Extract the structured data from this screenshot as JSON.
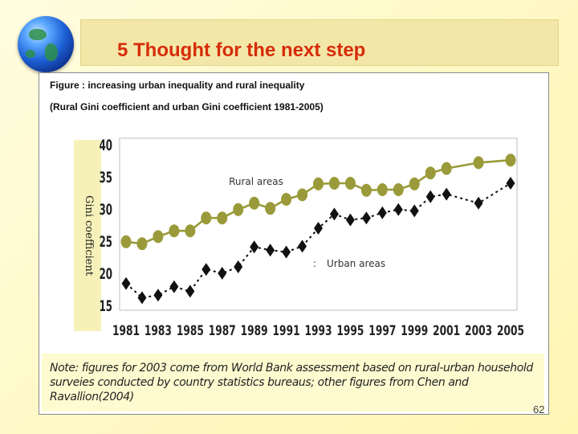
{
  "slide": {
    "title": "5 Thought for the next step",
    "caption_line1": "Figure : increasing urban inequality and rural inequality",
    "caption_line2": "(Rural Gini coefficient and urban Gini coefficient 1981-2005)",
    "note": "Note: figures for 2003 come from World Bank assessment based on rural-urban household surveies conducted by country statistics bureaus; other figures from Chen and Ravallion(2004)",
    "page_number": "62"
  },
  "chart_data": {
    "type": "line",
    "title": "",
    "xlabel": "",
    "ylabel": "Gini coefficient",
    "x_tick_labels": [
      "1981",
      "1983",
      "1985",
      "1987",
      "1989",
      "1991",
      "1993",
      "1995",
      "1997",
      "1999",
      "2001",
      "2003",
      "2005"
    ],
    "y_ticks": [
      15,
      20,
      25,
      30,
      35,
      40
    ],
    "ylim": [
      15,
      40
    ],
    "xlim": [
      1981,
      2005
    ],
    "grid": false,
    "series": [
      {
        "name": "Rural areas",
        "color": "#9a9a3a",
        "marker": "circle",
        "line_style": "solid",
        "points": [
          {
            "x": 1981,
            "y": 24.9
          },
          {
            "x": 1982,
            "y": 24.6
          },
          {
            "x": 1983,
            "y": 25.7
          },
          {
            "x": 1984,
            "y": 26.6
          },
          {
            "x": 1985,
            "y": 26.6
          },
          {
            "x": 1986,
            "y": 28.6
          },
          {
            "x": 1987,
            "y": 28.6
          },
          {
            "x": 1988,
            "y": 29.9
          },
          {
            "x": 1989,
            "y": 30.9
          },
          {
            "x": 1990,
            "y": 30.1
          },
          {
            "x": 1991,
            "y": 31.5
          },
          {
            "x": 1992,
            "y": 32.2
          },
          {
            "x": 1993,
            "y": 33.9
          },
          {
            "x": 1994,
            "y": 34.0
          },
          {
            "x": 1995,
            "y": 34.0
          },
          {
            "x": 1996,
            "y": 32.9
          },
          {
            "x": 1997,
            "y": 33.0
          },
          {
            "x": 1998,
            "y": 33.0
          },
          {
            "x": 1999,
            "y": 33.9
          },
          {
            "x": 2000,
            "y": 35.6
          },
          {
            "x": 2001,
            "y": 36.3
          },
          {
            "x": 2003,
            "y": 37.2
          },
          {
            "x": 2005,
            "y": 37.6
          }
        ]
      },
      {
        "name": "Urban areas",
        "color": "#111111",
        "marker": "diamond",
        "line_style": "dashed",
        "points": [
          {
            "x": 1981,
            "y": 18.4
          },
          {
            "x": 1982,
            "y": 16.2
          },
          {
            "x": 1983,
            "y": 16.6
          },
          {
            "x": 1984,
            "y": 17.9
          },
          {
            "x": 1985,
            "y": 17.2
          },
          {
            "x": 1986,
            "y": 20.6
          },
          {
            "x": 1987,
            "y": 20.0
          },
          {
            "x": 1988,
            "y": 21.0
          },
          {
            "x": 1989,
            "y": 24.1
          },
          {
            "x": 1990,
            "y": 23.6
          },
          {
            "x": 1991,
            "y": 23.3
          },
          {
            "x": 1992,
            "y": 24.2
          },
          {
            "x": 1993,
            "y": 27.0
          },
          {
            "x": 1994,
            "y": 29.2
          },
          {
            "x": 1995,
            "y": 28.3
          },
          {
            "x": 1996,
            "y": 28.6
          },
          {
            "x": 1997,
            "y": 29.4
          },
          {
            "x": 1998,
            "y": 29.9
          },
          {
            "x": 1999,
            "y": 29.7
          },
          {
            "x": 2000,
            "y": 31.9
          },
          {
            "x": 2001,
            "y": 32.3
          },
          {
            "x": 2003,
            "y": 30.9
          },
          {
            "x": 2005,
            "y": 34.0
          }
        ]
      }
    ],
    "annotations": [
      "Rural areas",
      "Urban areas"
    ]
  }
}
